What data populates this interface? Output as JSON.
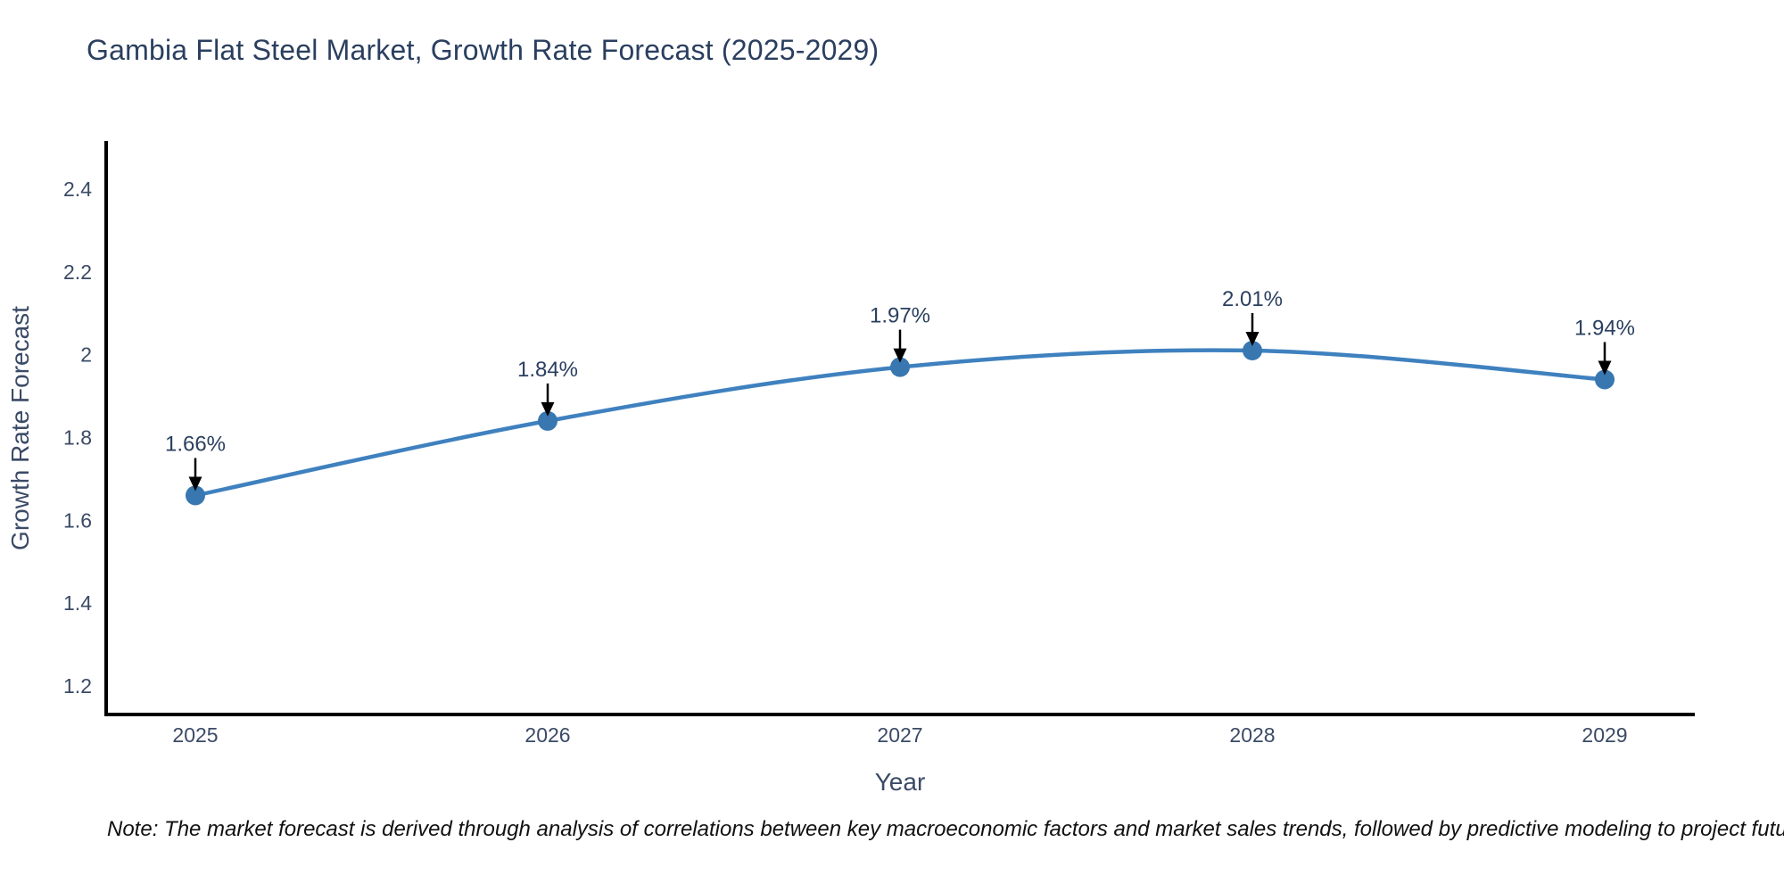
{
  "title": "Gambia Flat Steel Market, Growth Rate Forecast (2025-2029)",
  "note": "Note: The market forecast is derived through analysis of correlations between key macroeconomic factors and market sales trends, followed by predictive modeling to project future sales",
  "chart_data": {
    "type": "line",
    "title": "Gambia Flat Steel Market, Growth Rate Forecast (2025-2029)",
    "xlabel": "Year",
    "ylabel": "Growth Rate Forecast",
    "x": [
      2025,
      2026,
      2027,
      2028,
      2029
    ],
    "series": [
      {
        "name": "Growth Rate Forecast",
        "values": [
          1.66,
          1.84,
          1.97,
          2.01,
          1.94
        ]
      }
    ],
    "point_labels": [
      "1.66%",
      "1.84%",
      "1.97%",
      "2.01%",
      "1.94%"
    ],
    "yticks": [
      1.2,
      1.4,
      1.6,
      1.8,
      2,
      2.2,
      2.4
    ],
    "ylim": [
      1.131,
      2.512
    ],
    "grid": false,
    "legend": "none",
    "colors": {
      "line": "#3f81bf",
      "marker": "#3877b0",
      "axis_line": "#000000",
      "tick_text": "#3b4a66",
      "title_text": "#2a3f5f",
      "annotation_arrow": "#000000",
      "note_text": "#111111"
    }
  }
}
